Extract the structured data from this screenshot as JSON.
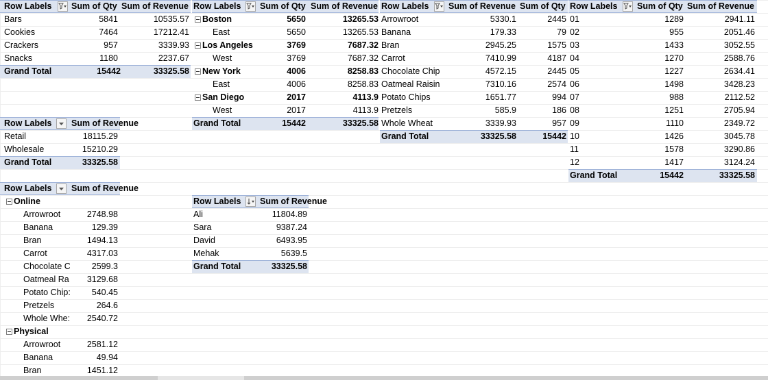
{
  "pt1": {
    "h_labels": "Row Labels",
    "h_qty": "Sum of Qty",
    "h_rev": "Sum of Revenue",
    "rows": [
      {
        "label": "Bars",
        "qty": "5841",
        "rev": "10535.57"
      },
      {
        "label": "Cookies",
        "qty": "7464",
        "rev": "17212.41"
      },
      {
        "label": "Crackers",
        "qty": "957",
        "rev": "3339.93"
      },
      {
        "label": "Snacks",
        "qty": "1180",
        "rev": "2237.67"
      }
    ],
    "total": {
      "label": "Grand Total",
      "qty": "15442",
      "rev": "33325.58"
    }
  },
  "pt2": {
    "h_labels": "Row Labels",
    "h_qty": "Sum of Qty",
    "h_rev": "Sum of Revenue",
    "rows": [
      {
        "label": "Boston",
        "qty": "5650",
        "rev": "13265.53"
      },
      {
        "label": "East",
        "qty": "5650",
        "rev": "13265.53"
      },
      {
        "label": "Los Angeles",
        "qty": "3769",
        "rev": "7687.32"
      },
      {
        "label": "West",
        "qty": "3769",
        "rev": "7687.32"
      },
      {
        "label": "New York",
        "qty": "4006",
        "rev": "8258.83"
      },
      {
        "label": "East",
        "qty": "4006",
        "rev": "8258.83"
      },
      {
        "label": "San Diego",
        "qty": "2017",
        "rev": "4113.9"
      },
      {
        "label": "West",
        "qty": "2017",
        "rev": "4113.9"
      }
    ],
    "total": {
      "label": "Grand Total",
      "qty": "15442",
      "rev": "33325.58"
    }
  },
  "pt3": {
    "h_labels": "Row Labels",
    "h_rev": "Sum of Revenue",
    "h_qty": "Sum of Qty",
    "rows": [
      {
        "label": "Arrowroot",
        "rev": "5330.1",
        "qty": "2445"
      },
      {
        "label": "Banana",
        "rev": "179.33",
        "qty": "79"
      },
      {
        "label": "Bran",
        "rev": "2945.25",
        "qty": "1575"
      },
      {
        "label": "Carrot",
        "rev": "7410.99",
        "qty": "4187"
      },
      {
        "label": "Chocolate Chip",
        "rev": "4572.15",
        "qty": "2445"
      },
      {
        "label": "Oatmeal Raisin",
        "rev": "7310.16",
        "qty": "2574"
      },
      {
        "label": "Potato Chips",
        "rev": "1651.77",
        "qty": "994"
      },
      {
        "label": "Pretzels",
        "rev": "585.9",
        "qty": "186"
      },
      {
        "label": "Whole Wheat",
        "rev": "3339.93",
        "qty": "957"
      }
    ],
    "total": {
      "label": "Grand Total",
      "rev": "33325.58",
      "qty": "15442"
    }
  },
  "pt4": {
    "h_labels": "Row Labels",
    "h_qty": "Sum of Qty",
    "h_rev": "Sum of Revenue",
    "rows": [
      {
        "label": "01",
        "qty": "1289",
        "rev": "2941.11"
      },
      {
        "label": "02",
        "qty": "955",
        "rev": "2051.46"
      },
      {
        "label": "03",
        "qty": "1433",
        "rev": "3052.55"
      },
      {
        "label": "04",
        "qty": "1270",
        "rev": "2588.76"
      },
      {
        "label": "05",
        "qty": "1227",
        "rev": "2634.41"
      },
      {
        "label": "06",
        "qty": "1498",
        "rev": "3428.23"
      },
      {
        "label": "07",
        "qty": "988",
        "rev": "2112.52"
      },
      {
        "label": "08",
        "qty": "1251",
        "rev": "2705.94"
      },
      {
        "label": "09",
        "qty": "1110",
        "rev": "2349.72"
      },
      {
        "label": "10",
        "qty": "1426",
        "rev": "3045.78"
      },
      {
        "label": "11",
        "qty": "1578",
        "rev": "3290.86"
      },
      {
        "label": "12",
        "qty": "1417",
        "rev": "3124.24"
      }
    ],
    "total": {
      "label": "Grand Total",
      "qty": "15442",
      "rev": "33325.58"
    }
  },
  "pt5": {
    "h_labels": "Row Labels",
    "h_rev": "Sum of Revenue",
    "rows": [
      {
        "label": "Retail",
        "rev": "18115.29"
      },
      {
        "label": "Wholesale",
        "rev": "15210.29"
      }
    ],
    "total": {
      "label": "Grand Total",
      "rev": "33325.58"
    }
  },
  "pt6": {
    "h_labels": "Row Labels",
    "h_rev": "Sum of Revenue",
    "groups": [
      {
        "label": "Online",
        "items": [
          {
            "label": "Arrowroot",
            "rev": "2748.98"
          },
          {
            "label": "Banana",
            "rev": "129.39"
          },
          {
            "label": "Bran",
            "rev": "1494.13"
          },
          {
            "label": "Carrot",
            "rev": "4317.03"
          },
          {
            "label": "Chocolate C",
            "rev": "2599.3"
          },
          {
            "label": "Oatmeal Ra",
            "rev": "3129.68"
          },
          {
            "label": "Potato Chip:",
            "rev": "540.45"
          },
          {
            "label": "Pretzels",
            "rev": "264.6"
          },
          {
            "label": "Whole Whe:",
            "rev": "2540.72"
          }
        ]
      },
      {
        "label": "Physical",
        "items": [
          {
            "label": "Arrowroot",
            "rev": "2581.12"
          },
          {
            "label": "Banana",
            "rev": "49.94"
          },
          {
            "label": "Bran",
            "rev": "1451.12"
          }
        ]
      }
    ]
  },
  "pt7": {
    "h_labels": "Row Labels",
    "h_rev": "Sum of Revenue",
    "rows": [
      {
        "label": "Ali",
        "rev": "11804.89"
      },
      {
        "label": "Sara",
        "rev": "9387.24"
      },
      {
        "label": "David",
        "rev": "6493.95"
      },
      {
        "label": "Mehak",
        "rev": "5639.5"
      }
    ],
    "total": {
      "label": "Grand Total",
      "rev": "33325.58"
    }
  },
  "icons": {
    "filter": "filter-dropdown-icon",
    "sort": "sort-dropdown-icon",
    "dropdown": "dropdown-arrow-icon",
    "collapse": "collapse-minus-icon"
  },
  "colors": {
    "header_fill": "#dde4f0",
    "header_border": "#9fb3d9"
  }
}
